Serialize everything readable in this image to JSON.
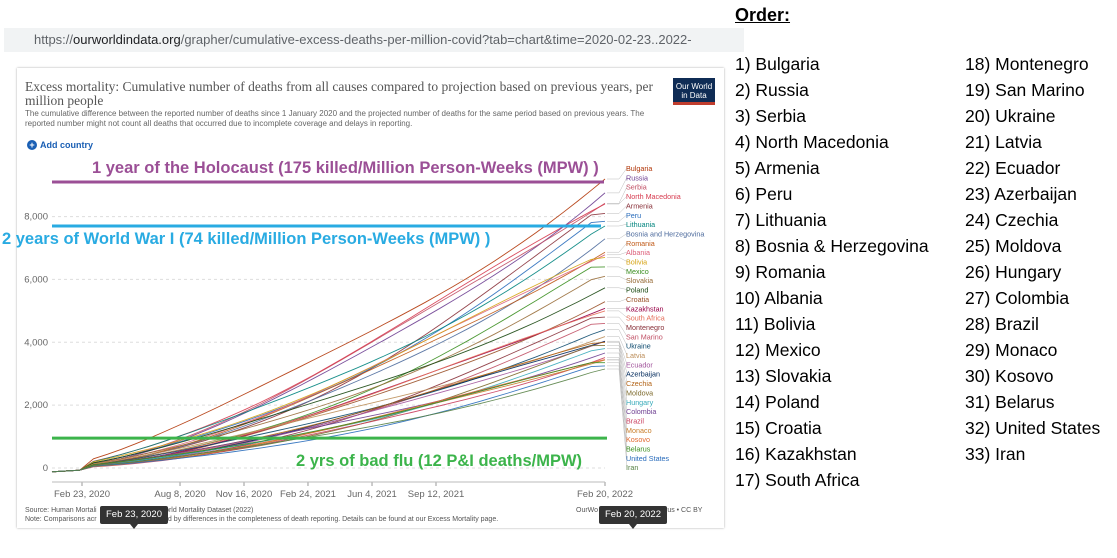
{
  "browser": {
    "url_prefix": "https://",
    "url_host": "ourworldindata.org",
    "url_rest": "/grapher/cumulative-excess-deaths-per-million-covid?tab=chart&time=2020-02-23..2022-"
  },
  "chart_header": {
    "title": "Excess mortality: Cumulative number of deaths from all causes compared to projection based on previous years, per million people",
    "subtitle": "The cumulative difference between the reported number of deaths since 1 January 2020 and the projected number of deaths for the same period based on previous years. The reported number might not count all deaths that occurred due to incomplete coverage and delays in reporting.",
    "logo_line1": "Our World",
    "logo_line2": "in Data",
    "add_country": "Add country",
    "source": "Source: Human Mortali",
    "source_tail": "World Mortality Dataset (2022)",
    "note": "Note: Comparisons acr",
    "note_tail": "cted by differences in the completeness of death reporting. Details can be found at our Excess Mortality page.",
    "credit": "OurWo",
    "credit_tail": "avirus • CC BY",
    "start_chip": "Feb 23, 2020",
    "end_chip": "Feb 20, 2022"
  },
  "chart_data": {
    "type": "line",
    "title": "",
    "xlabel": "",
    "ylabel": "",
    "x_ticks": [
      "Feb 23, 2020",
      "Aug 8, 2020",
      "Nov 16, 2020",
      "Feb 24, 2021",
      "Jun 4, 2021",
      "Sep 12, 2021",
      "Feb 20, 2022"
    ],
    "y_ticks": [
      "0",
      "2,000",
      "4,000",
      "6,000",
      "8,000"
    ],
    "ylim": [
      0,
      9800
    ],
    "xlim": [
      "2020-02-23",
      "2022-02-20"
    ],
    "grid": "horizontal",
    "legend": "right",
    "reference_lines": [
      {
        "label": "1 year of the Holocaust (175 killed/Million Person-Weeks (MPW) )",
        "y": 9100,
        "color": "#9b4f96"
      },
      {
        "label": "2 years of World War I (74 killed/Million Person-Weeks (MPW) )",
        "y": 7700,
        "color": "#29abe2"
      },
      {
        "label": "2 yrs of bad flu (12 P&I deaths/MPW)",
        "y": 950,
        "color": "#3cb44b"
      }
    ],
    "series": [
      {
        "name": "Bulgaria",
        "color": "#b13507",
        "final": 9300
      },
      {
        "name": "Russia",
        "color": "#6d3e91",
        "final": 9100
      },
      {
        "name": "Serbia",
        "color": "#c15065",
        "final": 8700
      },
      {
        "name": "North Macedonia",
        "color": "#d73c50",
        "final": 8400
      },
      {
        "name": "Armenia",
        "color": "#883039",
        "final": 8100
      },
      {
        "name": "Peru",
        "color": "#286bbb",
        "final": 7850
      },
      {
        "name": "Lithuania",
        "color": "#00847e",
        "final": 7700
      },
      {
        "name": "Bosnia and Herzegovina",
        "color": "#4c6a9c",
        "final": 7500
      },
      {
        "name": "Romania",
        "color": "#c05917",
        "final": 7150
      },
      {
        "name": "Albania",
        "color": "#dc5e78",
        "final": 6900
      },
      {
        "name": "Bolivia",
        "color": "#d6a313",
        "final": 6700
      },
      {
        "name": "Mexico",
        "color": "#3a8e1f",
        "final": 6400
      },
      {
        "name": "Slovakia",
        "color": "#986d39",
        "final": 6100
      },
      {
        "name": "Poland",
        "color": "#18470f",
        "final": 5800
      },
      {
        "name": "Croatia",
        "color": "#9a5129",
        "final": 5500
      },
      {
        "name": "Kazakhstan",
        "color": "#970046",
        "final": 5250
      },
      {
        "name": "South Africa",
        "color": "#e56e5a",
        "final": 5000
      },
      {
        "name": "Montenegro",
        "color": "#883039",
        "final": 4800
      },
      {
        "name": "San Marino",
        "color": "#c15065",
        "final": 4600
      },
      {
        "name": "Ukraine",
        "color": "#0c4a6e",
        "final": 4400
      },
      {
        "name": "Latvia",
        "color": "#bc8e5a",
        "final": 4300
      },
      {
        "name": "Ecuador",
        "color": "#a2559c",
        "final": 4200
      },
      {
        "name": "Azerbaijan",
        "color": "#00295b",
        "final": 4100
      },
      {
        "name": "Czechia",
        "color": "#b16214",
        "final": 4000
      },
      {
        "name": "Moldova",
        "color": "#7d6a2c",
        "final": 3900
      },
      {
        "name": "Hungary",
        "color": "#38aaba",
        "final": 3800
      },
      {
        "name": "Colombia",
        "color": "#6d3e91",
        "final": 3700
      },
      {
        "name": "Brazil",
        "color": "#c93e5d",
        "final": 3650
      },
      {
        "name": "Monaco",
        "color": "#c87d2a",
        "final": 3550
      },
      {
        "name": "Kosovo",
        "color": "#e26b32",
        "final": 3450
      },
      {
        "name": "Belarus",
        "color": "#3a8e1f",
        "final": 3350
      },
      {
        "name": "United States",
        "color": "#286bbb",
        "final": 3250
      },
      {
        "name": "Iran",
        "color": "#578145",
        "final": 3150
      }
    ]
  },
  "order": {
    "title": "Order:",
    "items": [
      "1) Bulgaria",
      "2) Russia",
      "3) Serbia",
      "4) North Macedonia",
      "5) Armenia",
      "6) Peru",
      "7) Lithuania",
      "8) Bosnia & Herzegovina",
      "9) Romania",
      "10) Albania",
      "11) Bolivia",
      "12) Mexico",
      "13) Slovakia",
      "14) Poland",
      "15) Croatia",
      "16) Kazakhstan",
      "17) South Africa",
      "18) Montenegro",
      "19) San Marino",
      "20) Ukraine",
      "21) Latvia",
      "22) Ecuador",
      "23) Azerbaijan",
      "24) Czechia",
      "25) Moldova",
      "26) Hungary",
      "27) Colombia",
      "28) Brazil",
      "29) Monaco",
      "30) Kosovo",
      "31) Belarus",
      "32) United States",
      "33) Iran"
    ]
  }
}
